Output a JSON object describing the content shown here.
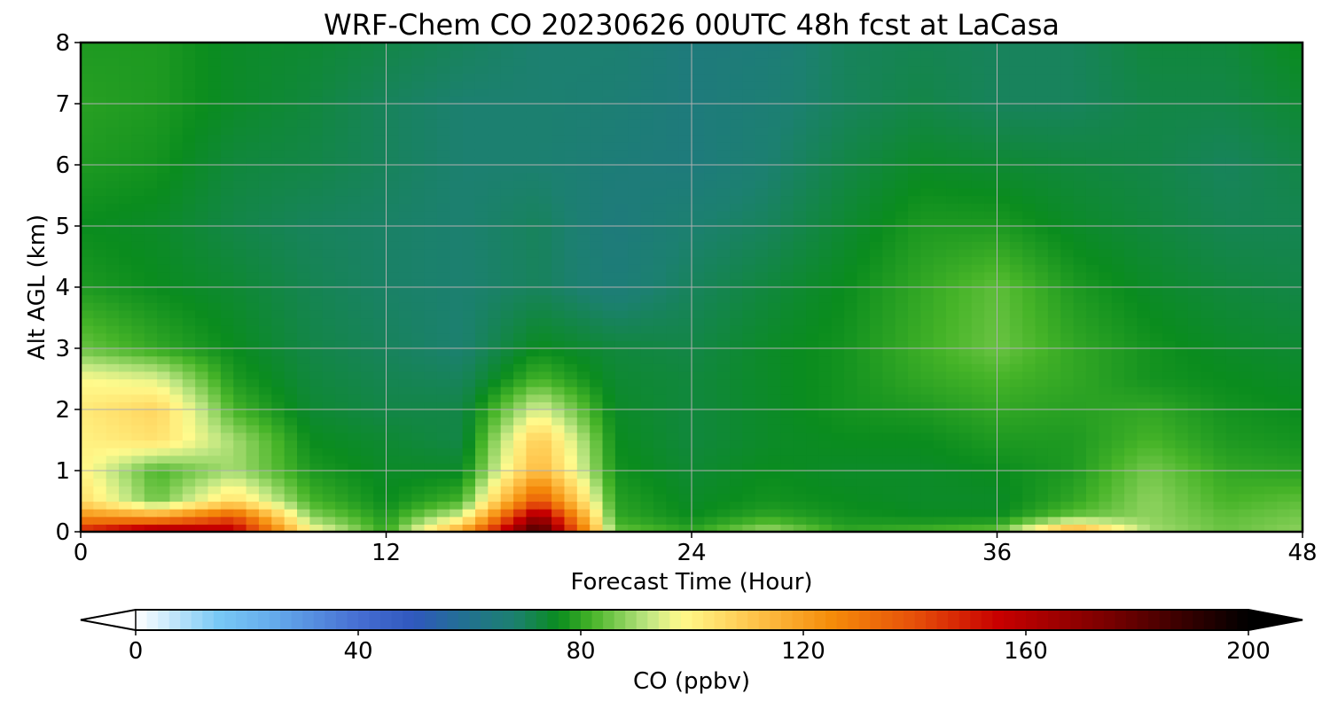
{
  "chart_data": {
    "type": "heatmap",
    "title": "WRF-Chem CO  20230626 00UTC 48h fcst at LaCasa",
    "xlabel": "Forecast Time (Hour)",
    "ylabel": "Alt AGL (km)",
    "xlim": [
      0,
      48
    ],
    "ylim": [
      0,
      8
    ],
    "x_ticks": [
      "0",
      "12",
      "24",
      "36",
      "48"
    ],
    "y_ticks": [
      "0",
      "1",
      "2",
      "3",
      "4",
      "5",
      "6",
      "7",
      "8"
    ],
    "grid": true,
    "x": [
      0,
      3,
      6,
      9,
      12,
      15,
      18,
      21,
      24,
      27,
      30,
      33,
      36,
      39,
      42,
      45,
      48
    ],
    "y": [
      0,
      0.25,
      0.5,
      1,
      1.5,
      2,
      2.5,
      3,
      4,
      5,
      6,
      7,
      8
    ],
    "z": [
      [
        150,
        170,
        160,
        100,
        80,
        120,
        190,
        85,
        80,
        90,
        80,
        82,
        85,
        120,
        90,
        85,
        88
      ],
      [
        125,
        120,
        140,
        88,
        78,
        95,
        170,
        80,
        76,
        80,
        77,
        76,
        76,
        85,
        88,
        84,
        86
      ],
      [
        105,
        85,
        105,
        82,
        76,
        82,
        140,
        79,
        75,
        77,
        76,
        75,
        75,
        80,
        88,
        82,
        84
      ],
      [
        100,
        82,
        90,
        78,
        75,
        75,
        115,
        77,
        74,
        76,
        75,
        75,
        76,
        78,
        86,
        80,
        79
      ],
      [
        100,
        104,
        90,
        76,
        74,
        72,
        110,
        76,
        73,
        75,
        76,
        76,
        78,
        78,
        82,
        78,
        77
      ],
      [
        102,
        107,
        82,
        74,
        72,
        72,
        95,
        75,
        73,
        75,
        77,
        78,
        80,
        79,
        80,
        77,
        76
      ],
      [
        98,
        95,
        78,
        73,
        71,
        70,
        82,
        74,
        73,
        75,
        77,
        80,
        82,
        80,
        77,
        76,
        75
      ],
      [
        85,
        80,
        76,
        72,
        70,
        68,
        76,
        73,
        72,
        75,
        77,
        81,
        85,
        80,
        77,
        75,
        74
      ],
      [
        78,
        76,
        74,
        71,
        69,
        68,
        70,
        66,
        70,
        73,
        76,
        80,
        84,
        78,
        75,
        73,
        72
      ],
      [
        76,
        75,
        72,
        70,
        69,
        68,
        70,
        65,
        68,
        70,
        74,
        78,
        78,
        75,
        73,
        71,
        71
      ],
      [
        78,
        77,
        73,
        72,
        70,
        68,
        68,
        66,
        65,
        68,
        72,
        75,
        74,
        73,
        72,
        70,
        72
      ],
      [
        79,
        78,
        75,
        73,
        70,
        68,
        68,
        67,
        65,
        67,
        70,
        72,
        70,
        70,
        72,
        72,
        74
      ],
      [
        78,
        78,
        75,
        74,
        72,
        70,
        68,
        68,
        65,
        66,
        70,
        71,
        70,
        70,
        73,
        73,
        76
      ]
    ],
    "colorbar": {
      "label": "CO  (ppbv)",
      "min": 0,
      "max": 200,
      "ticks": [
        "0",
        "40",
        "80",
        "120",
        "160",
        "200"
      ],
      "extend": "both"
    }
  }
}
